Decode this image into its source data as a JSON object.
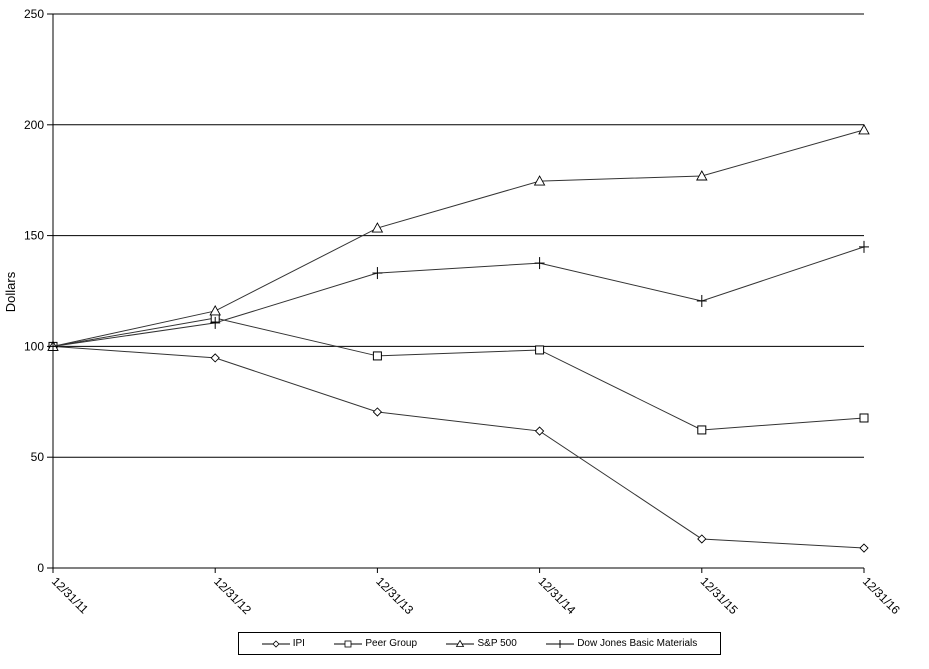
{
  "chart_data": {
    "type": "line",
    "title": "",
    "xlabel": "",
    "ylabel": "Dollars",
    "ylim": [
      0,
      250
    ],
    "yticks": [
      0,
      50,
      100,
      150,
      200,
      250
    ],
    "grid": true,
    "legend_position": "bottom",
    "categories": [
      "12/31/11",
      "12/31/12",
      "12/31/13",
      "12/31/14",
      "12/31/15",
      "12/31/16"
    ],
    "series": [
      {
        "name": "IPI",
        "marker": "diamond",
        "values": [
          100,
          94.8,
          70.4,
          61.8,
          13.1,
          9.0
        ]
      },
      {
        "name": "Peer Group",
        "marker": "square",
        "values": [
          100,
          112.8,
          95.7,
          98.4,
          62.3,
          67.7
        ]
      },
      {
        "name": "S&P 500",
        "marker": "triangle",
        "values": [
          100,
          116.0,
          153.4,
          174.6,
          176.9,
          197.7
        ]
      },
      {
        "name": "Dow Jones Basic Materials",
        "marker": "plus",
        "values": [
          100,
          110.6,
          133.1,
          137.6,
          120.5,
          144.9
        ]
      }
    ]
  },
  "axis": {
    "y_title": "Dollars"
  },
  "legend": {
    "items": [
      {
        "label": "IPI"
      },
      {
        "label": "Peer Group"
      },
      {
        "label": "S&P 500"
      },
      {
        "label": "Dow Jones Basic Materials"
      }
    ]
  }
}
